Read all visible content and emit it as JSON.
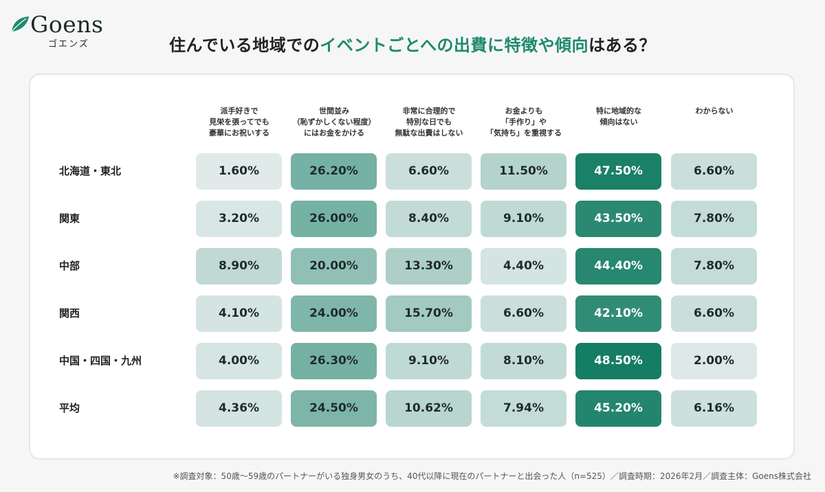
{
  "brand": {
    "name": "Goens",
    "kana": "ゴエンズ"
  },
  "title": {
    "prefix": "住んでいる地域での",
    "highlight": "イベントごとへの出費に特徴や傾向",
    "suffix": "はある？"
  },
  "colors": {
    "accent": "#1e8a6e",
    "cell_light": "#e6eeee",
    "cell_dark": "#0f7a60"
  },
  "chart_data": {
    "type": "heatmap",
    "columns": [
      [
        "派手好きで",
        "見栄を張ってでも",
        "豪華にお祝いする"
      ],
      [
        "世間並み",
        "（恥ずかしくない程度）",
        "にはお金をかける"
      ],
      [
        "非常に合理的で",
        "特別な日でも",
        "無駄な出費はしない"
      ],
      [
        "お金よりも",
        "「手作り」や",
        "「気持ち」を重視する"
      ],
      [
        "特に地域的な",
        "傾向はない"
      ],
      [
        "わからない"
      ]
    ],
    "rows": [
      "北海道・東北",
      "関東",
      "中部",
      "関西",
      "中国・四国・九州",
      "平均"
    ],
    "values": [
      [
        "1.60%",
        "26.20%",
        "6.60%",
        "11.50%",
        "47.50%",
        "6.60%"
      ],
      [
        "3.20%",
        "26.00%",
        "8.40%",
        "9.10%",
        "43.50%",
        "7.80%"
      ],
      [
        "8.90%",
        "20.00%",
        "13.30%",
        "4.40%",
        "44.40%",
        "7.80%"
      ],
      [
        "4.10%",
        "24.00%",
        "15.70%",
        "6.60%",
        "42.10%",
        "6.60%"
      ],
      [
        "4.00%",
        "26.30%",
        "9.10%",
        "8.10%",
        "48.50%",
        "2.00%"
      ],
      [
        "4.36%",
        "24.50%",
        "10.62%",
        "7.94%",
        "45.20%",
        "6.16%"
      ]
    ],
    "value_range": [
      0,
      50
    ]
  },
  "footnote": "※調査対象：50歳〜59歳のパートナーがいる独身男女のうち、40代以降に現在のパートナーと出会った人（n=525）／調査時期：2026年2月／調査主体：Goens株式会社"
}
